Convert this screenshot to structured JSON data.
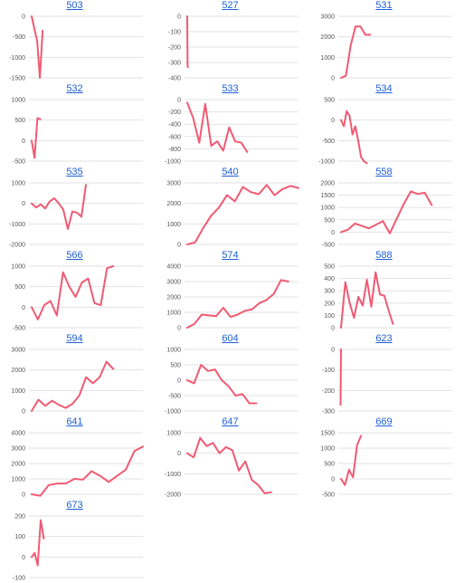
{
  "line_color": "#f05a73",
  "title_color": "#1f5fd6",
  "chart_data": [
    {
      "type": "line",
      "title": "503",
      "ylim": [
        -1500,
        0
      ],
      "yticks": [
        0,
        -500,
        -1000,
        -1500
      ],
      "values": [
        0,
        -300,
        -600,
        -1500,
        -350
      ],
      "grid": true
    },
    {
      "type": "line",
      "title": "527",
      "ylim": [
        -400,
        0
      ],
      "yticks": [
        0,
        -100,
        -200,
        -300,
        -400
      ],
      "values": [
        0,
        -320,
        -330
      ],
      "grid": true
    },
    {
      "type": "line",
      "title": "531",
      "ylim": [
        0,
        3000
      ],
      "yticks": [
        0,
        1000,
        2000,
        3000
      ],
      "values": [
        0,
        100,
        1600,
        2500,
        2500,
        2100,
        2100
      ],
      "grid": true
    },
    {
      "type": "line",
      "title": "532",
      "ylim": [
        -500,
        1000
      ],
      "yticks": [
        1000,
        500,
        0,
        -500
      ],
      "values": [
        0,
        -420,
        550,
        520
      ],
      "grid": true
    },
    {
      "type": "line",
      "title": "533",
      "ylim": [
        -1000,
        0
      ],
      "yticks": [
        0,
        -200,
        -400,
        -600,
        -800,
        -1000
      ],
      "values": [
        -50,
        -300,
        -700,
        -70,
        -750,
        -680,
        -830,
        -450,
        -680,
        -700,
        -850
      ],
      "grid": true
    },
    {
      "type": "line",
      "title": "534",
      "ylim": [
        -1000,
        500
      ],
      "yticks": [
        500,
        0,
        -500,
        -1000
      ],
      "values": [
        0,
        -150,
        220,
        100,
        -350,
        -150,
        -500,
        -900,
        -1000,
        -1050
      ],
      "grid": true
    },
    {
      "type": "line",
      "title": "535",
      "ylim": [
        -2000,
        1000
      ],
      "yticks": [
        1000,
        0,
        -1000,
        -2000
      ],
      "values": [
        0,
        -200,
        -50,
        -250,
        100,
        250,
        0,
        -300,
        -1250,
        -400,
        -450,
        -650,
        900
      ],
      "grid": true
    },
    {
      "type": "line",
      "title": "540",
      "ylim": [
        0,
        3000
      ],
      "yticks": [
        3000,
        2000,
        1000,
        0
      ],
      "values": [
        0,
        100,
        800,
        1400,
        1800,
        2400,
        2100,
        2800,
        2550,
        2450,
        2900,
        2400,
        2700,
        2850,
        2750
      ],
      "grid": true
    },
    {
      "type": "line",
      "title": "558",
      "ylim": [
        -500,
        2000
      ],
      "yticks": [
        2000,
        1500,
        1000,
        500,
        0,
        -500
      ],
      "values": [
        0,
        100,
        350,
        250,
        150,
        300,
        450,
        -50,
        550,
        1150,
        1650,
        1550,
        1600,
        1100
      ],
      "grid": true
    },
    {
      "type": "line",
      "title": "566",
      "ylim": [
        -500,
        1000
      ],
      "yticks": [
        1000,
        500,
        0,
        -500
      ],
      "values": [
        0,
        -300,
        50,
        150,
        -200,
        850,
        500,
        250,
        600,
        700,
        100,
        50,
        950,
        1000
      ],
      "grid": true
    },
    {
      "type": "line",
      "title": "574",
      "ylim": [
        0,
        4000
      ],
      "yticks": [
        4000,
        3000,
        2000,
        1000,
        0
      ],
      "values": [
        0,
        250,
        850,
        800,
        750,
        1300,
        700,
        850,
        1100,
        1200,
        1600,
        1800,
        2200,
        3100,
        3000
      ],
      "grid": true
    },
    {
      "type": "line",
      "title": "588",
      "ylim": [
        0,
        500
      ],
      "yticks": [
        500,
        400,
        300,
        200,
        100,
        0
      ],
      "values": [
        0,
        370,
        200,
        80,
        250,
        180,
        390,
        170,
        450,
        270,
        260,
        140,
        30
      ],
      "grid": true
    },
    {
      "type": "line",
      "title": "594",
      "ylim": [
        0,
        3000
      ],
      "yticks": [
        3000,
        2000,
        1000,
        0
      ],
      "values": [
        0,
        550,
        250,
        500,
        300,
        150,
        350,
        750,
        1650,
        1350,
        1650,
        2400,
        2050
      ],
      "grid": true
    },
    {
      "type": "line",
      "title": "604",
      "ylim": [
        -1000,
        1000
      ],
      "yticks": [
        1000,
        500,
        0,
        -500,
        -1000
      ],
      "values": [
        0,
        -100,
        500,
        300,
        350,
        0,
        -200,
        -500,
        -450,
        -750,
        -750
      ],
      "grid": true
    },
    {
      "type": "line",
      "title": "623",
      "ylim": [
        -300,
        0
      ],
      "yticks": [
        0,
        -100,
        -200,
        -300
      ],
      "values": [
        0,
        -270
      ],
      "grid": true
    },
    {
      "type": "line",
      "title": "641",
      "ylim": [
        0,
        4000
      ],
      "yticks": [
        4000,
        3000,
        2000,
        1000,
        0
      ],
      "values": [
        0,
        -100,
        600,
        700,
        700,
        1000,
        950,
        1500,
        1200,
        800,
        1200,
        1600,
        2800,
        3100
      ],
      "grid": true
    },
    {
      "type": "line",
      "title": "647",
      "ylim": [
        -2000,
        1000
      ],
      "yticks": [
        1000,
        0,
        -1000,
        -2000
      ],
      "values": [
        0,
        -200,
        750,
        350,
        500,
        0,
        300,
        150,
        -850,
        -400,
        -1300,
        -1550,
        -1950,
        -1900
      ],
      "grid": true
    },
    {
      "type": "line",
      "title": "669",
      "ylim": [
        -500,
        1500
      ],
      "yticks": [
        1500,
        1000,
        500,
        0,
        -500
      ],
      "values": [
        0,
        -200,
        300,
        50,
        1100,
        1400
      ],
      "grid": true
    },
    {
      "type": "line",
      "title": "673",
      "ylim": [
        -100,
        200
      ],
      "yticks": [
        200,
        100,
        0,
        -100
      ],
      "values": [
        0,
        20,
        -40,
        180,
        90
      ],
      "grid": true
    }
  ]
}
